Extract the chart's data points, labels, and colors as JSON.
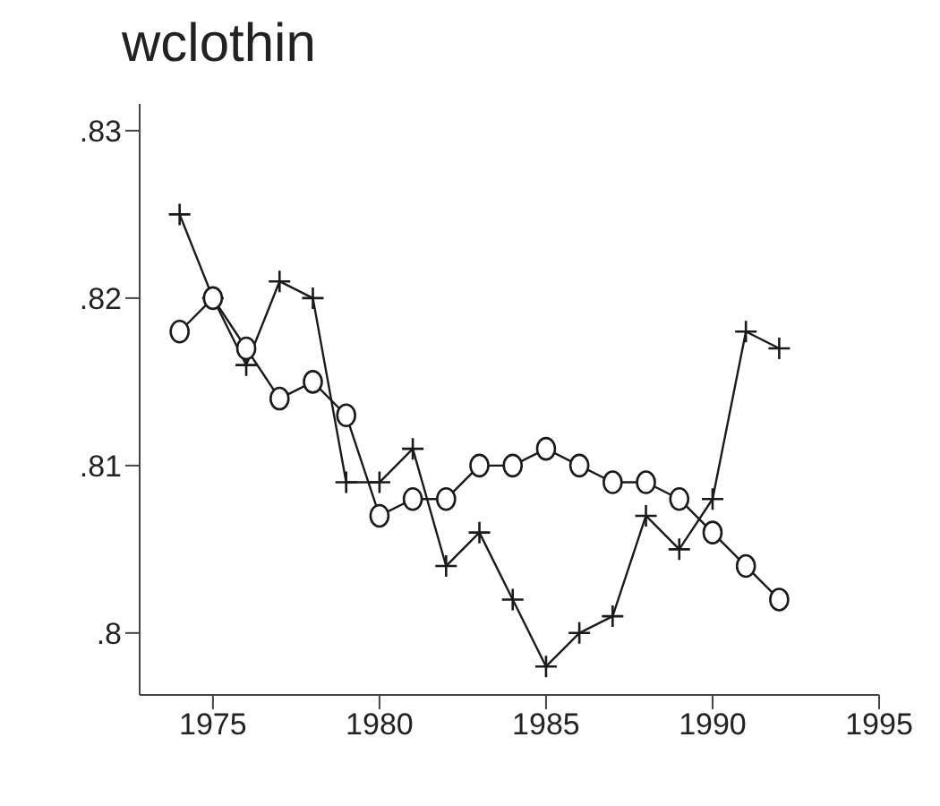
{
  "chart_data": {
    "type": "line",
    "title": "wclothin",
    "x": [
      1974,
      1975,
      1976,
      1977,
      1978,
      1979,
      1980,
      1981,
      1982,
      1983,
      1984,
      1985,
      1986,
      1987,
      1988,
      1989,
      1990,
      1991,
      1992
    ],
    "series": [
      {
        "color": "#1a1a1a",
        "marker": "cross",
        "values": [
          0.825,
          0.82,
          0.816,
          0.821,
          0.82,
          0.809,
          0.809,
          0.811,
          0.804,
          0.806,
          0.802,
          0.798,
          0.8,
          0.801,
          0.807,
          0.805,
          0.808,
          0.818,
          0.817
        ]
      },
      {
        "color": "#1a1a1a",
        "marker": "circle",
        "values": [
          0.818,
          0.82,
          0.817,
          0.814,
          0.815,
          0.813,
          0.807,
          0.808,
          0.808,
          0.81,
          0.81,
          0.811,
          0.81,
          0.809,
          0.809,
          0.808,
          0.806,
          0.804,
          0.802
        ]
      }
    ],
    "xlim": [
      1972.8,
      1995
    ],
    "xticks": [
      1975,
      1980,
      1985,
      1990,
      1995
    ],
    "ylim": [
      0.7963,
      0.8316
    ],
    "yticks": [
      {
        "value": 0.8,
        "label": ".8"
      },
      {
        "value": 0.81,
        "label": ".81"
      },
      {
        "value": 0.82,
        "label": ".82"
      },
      {
        "value": 0.83,
        "label": ".83"
      }
    ],
    "grid": false,
    "legend": false
  }
}
